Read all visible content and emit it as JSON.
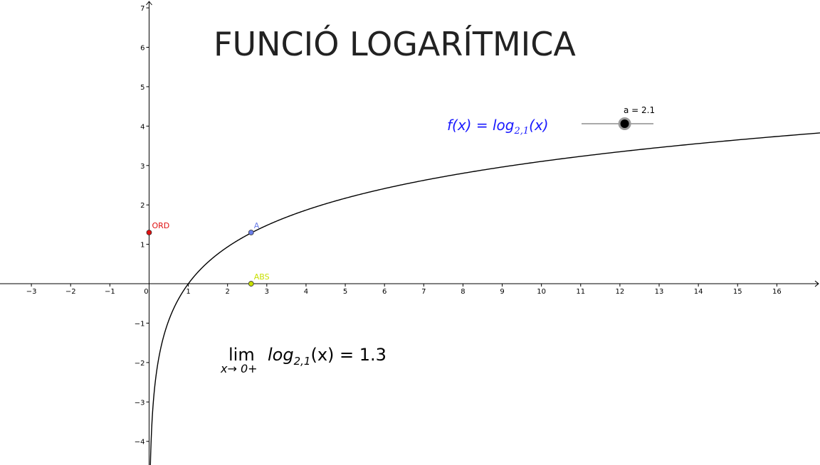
{
  "title": "FUNCIÓ LOGARÍTMICA",
  "slider": {
    "label": "a = 2.1",
    "value": 2.1,
    "min": 0,
    "max": 3.5
  },
  "function_label": {
    "prefix": "f(x) = log",
    "subscript": "2,1",
    "suffix": "(x)",
    "color": "#1a1aff"
  },
  "limit": {
    "operator": "lim",
    "under": "x→ 0+",
    "expr_prefix": "log",
    "expr_subscript": "2,1",
    "expr_suffix": "(x) = 1.3"
  },
  "points": [
    {
      "name": "ORD",
      "label": "ORD",
      "x": 0,
      "y": 1.3,
      "color": "#e01010"
    },
    {
      "name": "A",
      "label": "A",
      "x": 2.6,
      "y": 1.3,
      "color": "#6a7de8"
    },
    {
      "name": "ABS",
      "label": "ABS",
      "x": 2.6,
      "y": 0,
      "color": "#c8e000"
    }
  ],
  "colors": {
    "axis": "#000000",
    "curve": "#000000",
    "title": "#222222"
  },
  "chart_data": {
    "type": "line",
    "function": "log base 2.1 of x",
    "base": 2.1,
    "xlim": [
      -3.8,
      17.1
    ],
    "ylim": [
      -4.6,
      7.2
    ],
    "x_ticks": [
      -3,
      -2,
      -1,
      0,
      1,
      2,
      3,
      4,
      5,
      6,
      7,
      8,
      9,
      10,
      11,
      12,
      13,
      14,
      15,
      16
    ],
    "y_ticks": [
      -4,
      -3,
      -2,
      -1,
      1,
      2,
      3,
      4,
      5,
      6,
      7
    ],
    "x_tick_labels": [
      "−3",
      "−2",
      "−1",
      "0",
      "1",
      "2",
      "3",
      "4",
      "5",
      "6",
      "7",
      "8",
      "9",
      "10",
      "11",
      "12",
      "13",
      "14",
      "15",
      "16"
    ],
    "y_tick_labels": [
      "−4",
      "−3",
      "−2",
      "−1",
      "1",
      "2",
      "3",
      "4",
      "5",
      "6",
      "7"
    ],
    "grid": false
  }
}
